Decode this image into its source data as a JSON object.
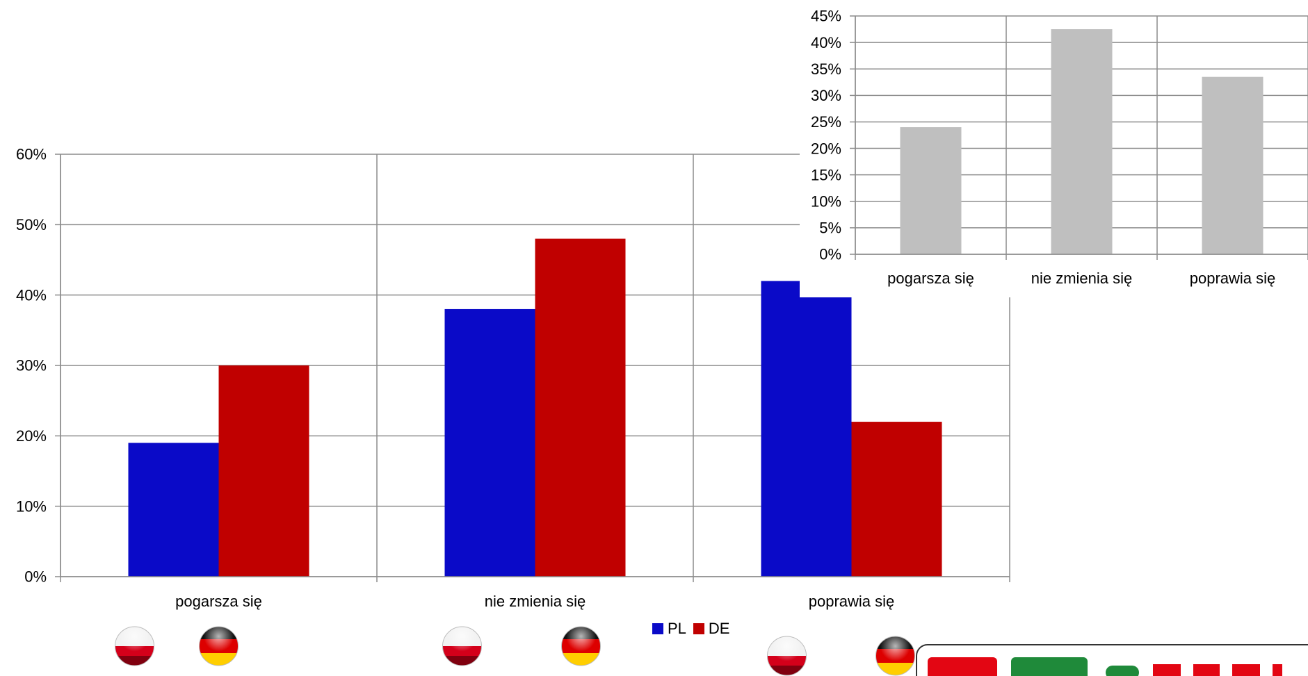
{
  "chart_data": [
    {
      "type": "bar",
      "categories": [
        "pogarsza się",
        "nie zmienia się",
        "poprawia się"
      ],
      "series": [
        {
          "name": "PL",
          "values": [
            0.19,
            0.38,
            0.42
          ],
          "color": "#0a0ac8"
        },
        {
          "name": "DE",
          "values": [
            0.3,
            0.48,
            0.22
          ],
          "color": "#c00000"
        }
      ],
      "ylim": [
        0,
        0.6
      ],
      "yticks": [
        "0%",
        "10%",
        "20%",
        "30%",
        "40%",
        "50%",
        "60%"
      ],
      "grid": true,
      "legend": "bottom-center",
      "flag_icons": [
        "poland-flag-icon",
        "germany-flag-icon"
      ]
    },
    {
      "type": "bar",
      "categories": [
        "pogarsza się",
        "nie zmienia się",
        "poprawia się"
      ],
      "series": [
        {
          "values": [
            0.24,
            0.425,
            0.335
          ],
          "color": "#bfbfbf"
        }
      ],
      "ylim": [
        0,
        0.45
      ],
      "yticks": [
        "0%",
        "5%",
        "10%",
        "15%",
        "20%",
        "25%",
        "30%",
        "35%",
        "40%",
        "45%"
      ],
      "grid": true
    }
  ],
  "logo": {
    "icon": "company-logo-icon",
    "colors": [
      "#e30613",
      "#1f8a3a"
    ]
  }
}
